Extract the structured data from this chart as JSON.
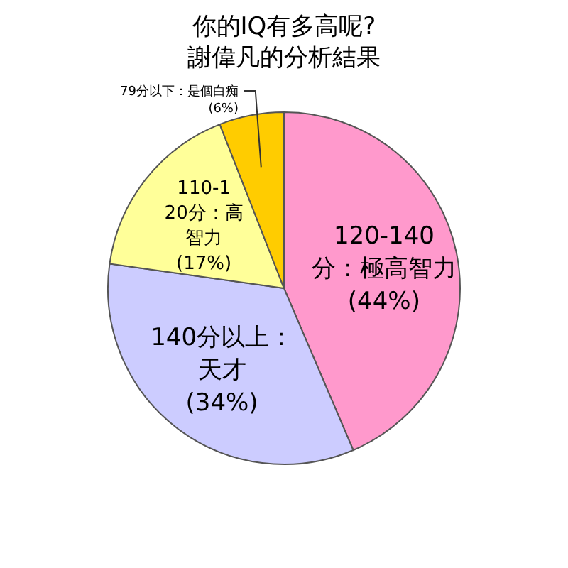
{
  "chart_data": {
    "type": "pie",
    "title": "你的IQ有多高呢?",
    "subtitle": "謝偉凡的分析結果",
    "categories": [
      "120-140分：極高智力",
      "140分以上：天才",
      "110-120分：高智力",
      "79分以下：是個白痴"
    ],
    "values": [
      44,
      34,
      17,
      6
    ],
    "value_labels": [
      "(44%)",
      "(34%)",
      "(17%)",
      "(6%)"
    ],
    "colors": [
      "#ff99cc",
      "#ccccff",
      "#ffff99",
      "#ffcc00"
    ]
  }
}
